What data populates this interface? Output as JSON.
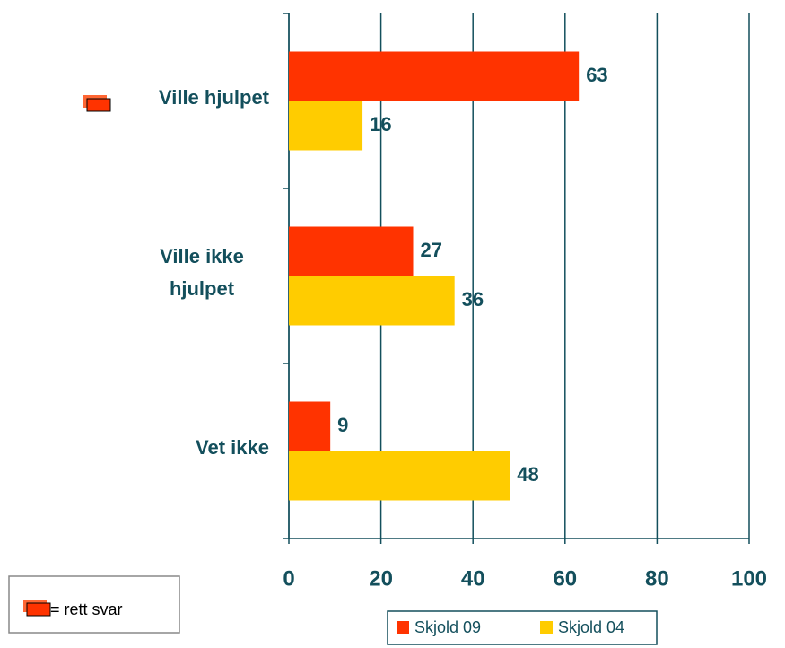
{
  "chart_data": {
    "type": "bar",
    "orientation": "horizontal",
    "categories": [
      "Ville hjulpet",
      "Ville ikke hjulpet",
      "Vet ikke"
    ],
    "series": [
      {
        "name": "Skjold 09",
        "color": "#ff3300",
        "values": [
          63,
          27,
          9
        ]
      },
      {
        "name": "Skjold 04",
        "color": "#ffcc00",
        "values": [
          16,
          36,
          48
        ]
      }
    ],
    "xlim": [
      0,
      100
    ],
    "xticks": [
      0,
      20,
      40,
      60,
      80,
      100
    ],
    "grid": true,
    "annotation": "= rett svar"
  }
}
